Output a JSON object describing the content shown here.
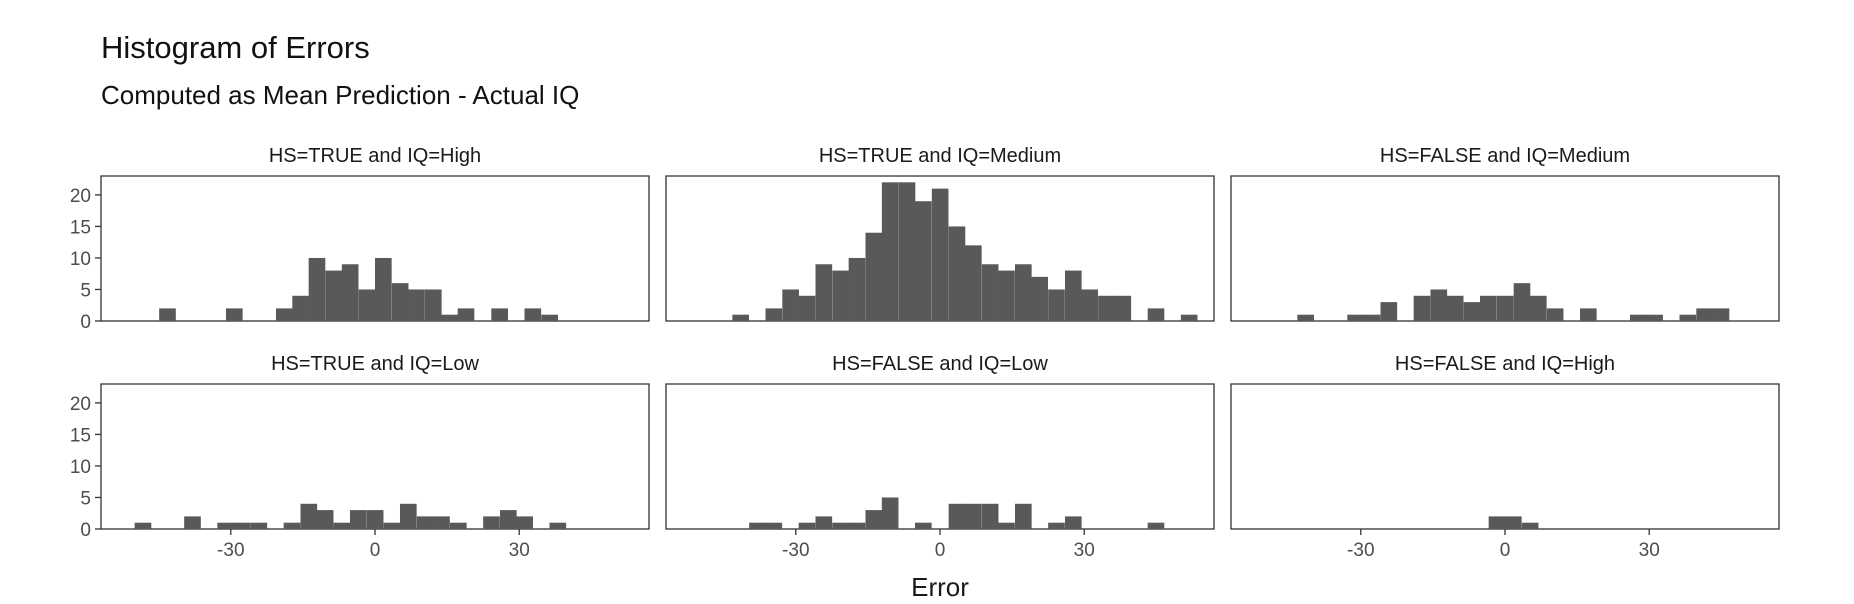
{
  "chart_data": {
    "type": "bar",
    "title": "Histogram of Errors",
    "subtitle": "Computed as Mean Prediction - Actual IQ",
    "xlabel": "Error",
    "ylabel": "",
    "bin_width": 3.4,
    "xlim": [
      -57,
      57
    ],
    "ylim": [
      0,
      23
    ],
    "x_ticks": [
      -30,
      0,
      30
    ],
    "y_ticks": [
      0,
      5,
      10,
      15,
      20
    ],
    "grid": false,
    "facets": [
      {
        "label": "HS=TRUE and IQ=High",
        "bins": [
          {
            "x": -43.2,
            "count": 2
          },
          {
            "x": -29.3,
            "count": 2
          },
          {
            "x": -18.9,
            "count": 2
          },
          {
            "x": -15.5,
            "count": 4
          },
          {
            "x": -12.1,
            "count": 10
          },
          {
            "x": -8.6,
            "count": 8
          },
          {
            "x": -5.2,
            "count": 9
          },
          {
            "x": -1.7,
            "count": 5
          },
          {
            "x": 1.7,
            "count": 10
          },
          {
            "x": 5.2,
            "count": 6
          },
          {
            "x": 8.6,
            "count": 5
          },
          {
            "x": 12.1,
            "count": 5
          },
          {
            "x": 15.5,
            "count": 1
          },
          {
            "x": 18.9,
            "count": 2
          },
          {
            "x": 25.9,
            "count": 2
          },
          {
            "x": 32.8,
            "count": 2
          },
          {
            "x": 36.3,
            "count": 1
          }
        ]
      },
      {
        "label": "HS=TRUE and IQ=Medium",
        "bins": [
          {
            "x": -41.5,
            "count": 1
          },
          {
            "x": -34.6,
            "count": 2
          },
          {
            "x": -31.1,
            "count": 5
          },
          {
            "x": -27.7,
            "count": 4
          },
          {
            "x": -24.2,
            "count": 9
          },
          {
            "x": -20.7,
            "count": 8
          },
          {
            "x": -17.3,
            "count": 10
          },
          {
            "x": -13.8,
            "count": 14
          },
          {
            "x": -10.4,
            "count": 22
          },
          {
            "x": -6.9,
            "count": 22
          },
          {
            "x": -3.5,
            "count": 19
          },
          {
            "x": 0.0,
            "count": 21
          },
          {
            "x": 3.5,
            "count": 15
          },
          {
            "x": 6.9,
            "count": 12
          },
          {
            "x": 10.4,
            "count": 9
          },
          {
            "x": 13.8,
            "count": 8
          },
          {
            "x": 17.3,
            "count": 9
          },
          {
            "x": 20.7,
            "count": 7
          },
          {
            "x": 24.2,
            "count": 5
          },
          {
            "x": 27.7,
            "count": 8
          },
          {
            "x": 31.1,
            "count": 5
          },
          {
            "x": 34.6,
            "count": 4
          },
          {
            "x": 38.0,
            "count": 4
          },
          {
            "x": 44.9,
            "count": 2
          },
          {
            "x": 51.8,
            "count": 1
          }
        ]
      },
      {
        "label": "HS=FALSE and IQ=Medium",
        "bins": [
          {
            "x": -41.5,
            "count": 1
          },
          {
            "x": -31.1,
            "count": 1
          },
          {
            "x": -27.7,
            "count": 1
          },
          {
            "x": -24.2,
            "count": 3
          },
          {
            "x": -17.3,
            "count": 4
          },
          {
            "x": -13.8,
            "count": 5
          },
          {
            "x": -10.4,
            "count": 4
          },
          {
            "x": -6.9,
            "count": 3
          },
          {
            "x": -3.5,
            "count": 4
          },
          {
            "x": 0.0,
            "count": 4
          },
          {
            "x": 3.5,
            "count": 6
          },
          {
            "x": 6.9,
            "count": 4
          },
          {
            "x": 10.4,
            "count": 2
          },
          {
            "x": 17.3,
            "count": 2
          },
          {
            "x": 27.7,
            "count": 1
          },
          {
            "x": 31.1,
            "count": 1
          },
          {
            "x": 38.0,
            "count": 1
          },
          {
            "x": 41.5,
            "count": 2
          },
          {
            "x": 44.9,
            "count": 2
          }
        ]
      },
      {
        "label": "HS=TRUE and IQ=Low",
        "bins": [
          {
            "x": -48.3,
            "count": 1
          },
          {
            "x": -38.0,
            "count": 2
          },
          {
            "x": -31.1,
            "count": 1
          },
          {
            "x": -27.7,
            "count": 1
          },
          {
            "x": -24.2,
            "count": 1
          },
          {
            "x": -17.3,
            "count": 1
          },
          {
            "x": -13.8,
            "count": 4
          },
          {
            "x": -10.4,
            "count": 3
          },
          {
            "x": -6.9,
            "count": 1
          },
          {
            "x": -3.5,
            "count": 3
          },
          {
            "x": 0.0,
            "count": 3
          },
          {
            "x": 3.5,
            "count": 1
          },
          {
            "x": 6.9,
            "count": 4
          },
          {
            "x": 10.4,
            "count": 2
          },
          {
            "x": 13.8,
            "count": 2
          },
          {
            "x": 17.3,
            "count": 1
          },
          {
            "x": 24.2,
            "count": 2
          },
          {
            "x": 27.7,
            "count": 3
          },
          {
            "x": 31.1,
            "count": 2
          },
          {
            "x": 38.0,
            "count": 1
          }
        ]
      },
      {
        "label": "HS=FALSE and IQ=Low",
        "bins": [
          {
            "x": -38.0,
            "count": 1
          },
          {
            "x": -34.6,
            "count": 1
          },
          {
            "x": -27.7,
            "count": 1
          },
          {
            "x": -24.2,
            "count": 2
          },
          {
            "x": -20.7,
            "count": 1
          },
          {
            "x": -17.3,
            "count": 1
          },
          {
            "x": -13.8,
            "count": 3
          },
          {
            "x": -10.4,
            "count": 5
          },
          {
            "x": -3.5,
            "count": 1
          },
          {
            "x": 3.5,
            "count": 4
          },
          {
            "x": 6.9,
            "count": 4
          },
          {
            "x": 10.4,
            "count": 4
          },
          {
            "x": 13.8,
            "count": 1
          },
          {
            "x": 17.3,
            "count": 4
          },
          {
            "x": 24.2,
            "count": 1
          },
          {
            "x": 27.7,
            "count": 2
          },
          {
            "x": 44.9,
            "count": 1
          }
        ]
      },
      {
        "label": "HS=FALSE and IQ=High",
        "bins": [
          {
            "x": -1.7,
            "count": 2
          },
          {
            "x": 1.7,
            "count": 2
          },
          {
            "x": 5.2,
            "count": 1
          }
        ]
      }
    ]
  }
}
